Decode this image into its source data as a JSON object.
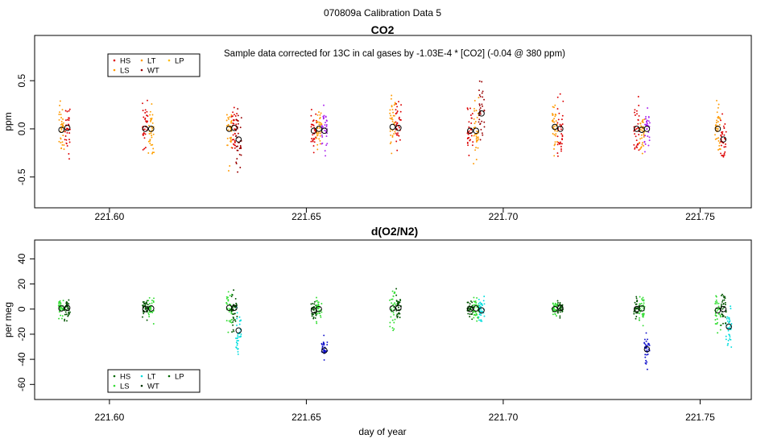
{
  "figure": {
    "suptitle": "070809a   Calibration Data 5",
    "xlabel": "day of year"
  },
  "chart_data": [
    {
      "type": "scatter",
      "title": "CO2",
      "annotation": "Sample data corrected for 13C in cal gases by -1.03E-4 * [CO2] (-0.04 @ 380 ppm)",
      "ylabel": "ppm",
      "xlim": [
        221.581,
        221.763
      ],
      "ylim": [
        -0.82,
        0.97
      ],
      "xticks": [
        221.6,
        221.65,
        221.7,
        221.75
      ],
      "xtick_labels": [
        "221.60",
        "221.65",
        "221.70",
        "221.75"
      ],
      "yticks": [
        -0.5,
        0.0,
        0.5
      ],
      "ytick_labels": [
        "-0.5",
        "0.0",
        "0.5"
      ],
      "legend": {
        "position": "top-left",
        "entries": [
          {
            "label": "HS",
            "color": "#dd0000"
          },
          {
            "label": "LS",
            "color": "#ff9900"
          },
          {
            "label": "LT",
            "color": "#ff9900"
          },
          {
            "label": "WT",
            "color": "#990000"
          },
          {
            "label": "LP",
            "color": "#ffbb00"
          }
        ]
      },
      "groups": [
        {
          "label": "LS",
          "color": "#ff9900",
          "x_center": 221.5878,
          "mean": -0.01,
          "sd": 0.23
        },
        {
          "label": "HS",
          "color": "#dd0000",
          "x_center": 221.5893,
          "mean": 0.01,
          "sd": 0.21
        },
        {
          "label": "HS",
          "color": "#dd0000",
          "x_center": 221.6091,
          "mean": 0.0,
          "sd": 0.21
        },
        {
          "label": "LP",
          "color": "#ffa000",
          "x_center": 221.6106,
          "mean": 0.0,
          "sd": 0.22
        },
        {
          "label": "LS",
          "color": "#ff9900",
          "x_center": 221.6304,
          "mean": 0.0,
          "sd": 0.25
        },
        {
          "label": "HS",
          "color": "#dd0000",
          "x_center": 221.6317,
          "mean": 0.01,
          "sd": 0.22
        },
        {
          "label": "WT",
          "color": "#990000",
          "x_center": 221.6328,
          "mean": -0.11,
          "sd": 0.26
        },
        {
          "label": "HS",
          "color": "#dd0000",
          "x_center": 221.6519,
          "mean": -0.02,
          "sd": 0.17
        },
        {
          "label": "LS",
          "color": "#ff9900",
          "x_center": 221.6532,
          "mean": 0.0,
          "sd": 0.19
        },
        {
          "label": "LT",
          "color": "#aa22ee",
          "x_center": 221.6546,
          "mean": -0.02,
          "sd": 0.2
        },
        {
          "label": "LS",
          "color": "#ff9900",
          "x_center": 221.6719,
          "mean": 0.02,
          "sd": 0.25
        },
        {
          "label": "HS",
          "color": "#dd0000",
          "x_center": 221.6734,
          "mean": 0.01,
          "sd": 0.21
        },
        {
          "label": "HS",
          "color": "#dd0000",
          "x_center": 221.6916,
          "mean": -0.02,
          "sd": 0.22
        },
        {
          "label": "LS",
          "color": "#ff9900",
          "x_center": 221.6931,
          "mean": -0.02,
          "sd": 0.27
        },
        {
          "label": "WT",
          "color": "#990000",
          "x_center": 221.6945,
          "mean": 0.16,
          "sd": 0.23
        },
        {
          "label": "LS",
          "color": "#ff9900",
          "x_center": 221.7131,
          "mean": 0.02,
          "sd": 0.23
        },
        {
          "label": "HS",
          "color": "#dd0000",
          "x_center": 221.7145,
          "mean": 0.0,
          "sd": 0.22
        },
        {
          "label": "HS",
          "color": "#dd0000",
          "x_center": 221.7339,
          "mean": 0.0,
          "sd": 0.2
        },
        {
          "label": "LS",
          "color": "#ff9900",
          "x_center": 221.7352,
          "mean": -0.01,
          "sd": 0.19
        },
        {
          "label": "LT",
          "color": "#aa22ee",
          "x_center": 221.7365,
          "mean": 0.0,
          "sd": 0.21
        },
        {
          "label": "LS",
          "color": "#ff9900",
          "x_center": 221.7545,
          "mean": 0.0,
          "sd": 0.23
        },
        {
          "label": "HS",
          "color": "#dd0000",
          "x_center": 221.7559,
          "mean": -0.11,
          "sd": 0.23
        }
      ]
    },
    {
      "type": "scatter",
      "title": "d(O2/N2)",
      "ylabel": "per meg",
      "xlim": [
        221.581,
        221.763
      ],
      "ylim": [
        -72,
        55
      ],
      "xticks": [
        221.6,
        221.65,
        221.7,
        221.75
      ],
      "xtick_labels": [
        "221.60",
        "221.65",
        "221.70",
        "221.75"
      ],
      "yticks": [
        -60,
        -40,
        -20,
        0,
        20,
        40
      ],
      "ytick_labels": [
        "-60",
        "-40",
        "-20",
        "0",
        "20",
        "40"
      ],
      "legend": {
        "position": "bottom-left",
        "entries": [
          {
            "label": "HS",
            "color": "#006600"
          },
          {
            "label": "LS",
            "color": "#33dd33"
          },
          {
            "label": "LT",
            "color": "#00dddd"
          },
          {
            "label": "WT",
            "color": "#003300"
          },
          {
            "label": "LP",
            "color": "#006600"
          }
        ]
      },
      "groups": [
        {
          "label": "LS",
          "color": "#33dd33",
          "x_center": 221.5878,
          "mean": 0.5,
          "sd": 6
        },
        {
          "label": "HS",
          "color": "#005500",
          "x_center": 221.5893,
          "mean": 1,
          "sd": 8
        },
        {
          "label": "HS",
          "color": "#005500",
          "x_center": 221.6091,
          "mean": 0,
          "sd": 6
        },
        {
          "label": "LS",
          "color": "#33dd33",
          "x_center": 221.6106,
          "mean": 0.5,
          "sd": 7
        },
        {
          "label": "LS",
          "color": "#33dd33",
          "x_center": 221.6304,
          "mean": 1,
          "sd": 11
        },
        {
          "label": "HS",
          "color": "#005500",
          "x_center": 221.6317,
          "mean": 1,
          "sd": 13
        },
        {
          "label": "LT",
          "color": "#00dddd",
          "x_center": 221.6328,
          "mean": -17,
          "sd": 16
        },
        {
          "label": "HS",
          "color": "#005500",
          "x_center": 221.6519,
          "mean": -1,
          "sd": 6
        },
        {
          "label": "LS",
          "color": "#33dd33",
          "x_center": 221.6532,
          "mean": 0,
          "sd": 7
        },
        {
          "label": "LP",
          "color": "#1111cc",
          "x_center": 221.6546,
          "mean": -33,
          "sd": 7
        },
        {
          "label": "LS",
          "color": "#33dd33",
          "x_center": 221.6719,
          "mean": 0.5,
          "sd": 12
        },
        {
          "label": "HS",
          "color": "#005500",
          "x_center": 221.6734,
          "mean": 1,
          "sd": 8
        },
        {
          "label": "HS",
          "color": "#005500",
          "x_center": 221.6916,
          "mean": 0,
          "sd": 6
        },
        {
          "label": "LS",
          "color": "#33dd33",
          "x_center": 221.6931,
          "mean": 0.5,
          "sd": 7
        },
        {
          "label": "LT",
          "color": "#00dddd",
          "x_center": 221.6945,
          "mean": -1,
          "sd": 10
        },
        {
          "label": "LS",
          "color": "#33dd33",
          "x_center": 221.7131,
          "mean": 0,
          "sd": 5
        },
        {
          "label": "HS",
          "color": "#005500",
          "x_center": 221.7145,
          "mean": 1,
          "sd": 5
        },
        {
          "label": "HS",
          "color": "#005500",
          "x_center": 221.7339,
          "mean": 0,
          "sd": 7
        },
        {
          "label": "LS",
          "color": "#33dd33",
          "x_center": 221.7352,
          "mean": 0.5,
          "sd": 10
        },
        {
          "label": "LP",
          "color": "#1111cc",
          "x_center": 221.7365,
          "mean": -32,
          "sd": 13
        },
        {
          "label": "LS",
          "color": "#33dd33",
          "x_center": 221.7545,
          "mean": -1,
          "sd": 11
        },
        {
          "label": "HS",
          "color": "#005500",
          "x_center": 221.7559,
          "mean": 0,
          "sd": 12
        },
        {
          "label": "LT",
          "color": "#00dddd",
          "x_center": 221.7573,
          "mean": -14,
          "sd": 13
        }
      ]
    }
  ]
}
